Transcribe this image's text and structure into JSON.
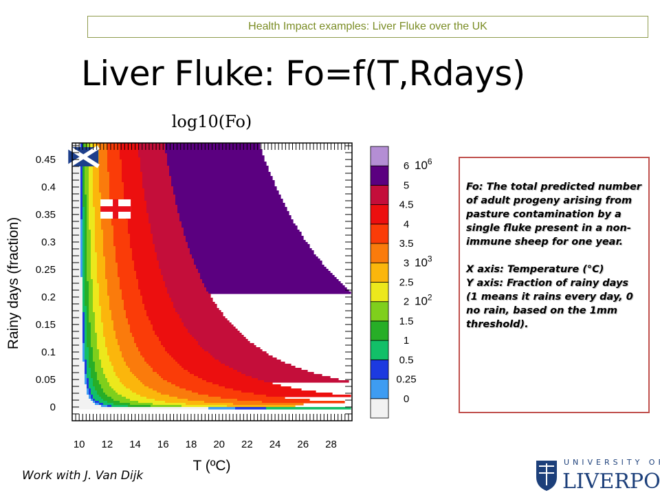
{
  "banner": {
    "text": "Health Impact examples: Liver Fluke over the UK"
  },
  "slide_title": "Liver Fluke: Fo=f(T,Rdays)",
  "credit": "Work with J. Van Dijk",
  "logo": {
    "top": "UNIVERSITY OF",
    "main": "LIVERPOOL"
  },
  "info": {
    "definition": "Fo: The total predicted number of adult progeny arising from pasture contamination by a single fluke present in a non-immune sheep for one year.",
    "xaxis": "X axis: Temperature (°C)",
    "yaxis": "Y axis: Fraction of rainy days (1 means it rains every day, 0 no rain, based on the 1mm threshold)."
  },
  "chart_data": {
    "type": "heatmap",
    "title": "log10(Fo)",
    "xlabel": "T (ºC)",
    "ylabel": "Rainy days (fraction)",
    "xlim": [
      9.5,
      29.5
    ],
    "ylim": [
      -0.025,
      0.48
    ],
    "xticks": [
      "10",
      "12",
      "14",
      "16",
      "18",
      "20",
      "22",
      "24",
      "26",
      "28"
    ],
    "yticks": [
      "0",
      "0.05",
      "0.1",
      "0.15",
      "0.2",
      "0.25",
      "0.3",
      "0.35",
      "0.4",
      "0.45"
    ],
    "colorbar": {
      "levels": [
        "0",
        "0.25",
        "0.5",
        "1",
        "1.5",
        "2",
        "2.5",
        "3",
        "3.5",
        "4",
        "4.5",
        "5",
        "6"
      ],
      "colors": [
        "#f2f2f2",
        "#3e9cf2",
        "#1c3ae0",
        "#12bf68",
        "#27ae27",
        "#7fcf1c",
        "#ece81c",
        "#fbb60c",
        "#fa7b0c",
        "#fa3c08",
        "#ec0f0f",
        "#c40e3a",
        "#5b0080",
        "#b48ed4"
      ],
      "power_labels": [
        {
          "base": "10",
          "exp": "6",
          "at": "6"
        },
        {
          "base": "10",
          "exp": "3",
          "at": "3"
        },
        {
          "base": "10",
          "exp": "2",
          "at": "2"
        }
      ]
    },
    "markers": [
      {
        "name": "scotland-flag",
        "T": 10.3,
        "R": 0.455
      },
      {
        "name": "england-flag",
        "T": 12.6,
        "R": 0.36
      }
    ]
  }
}
